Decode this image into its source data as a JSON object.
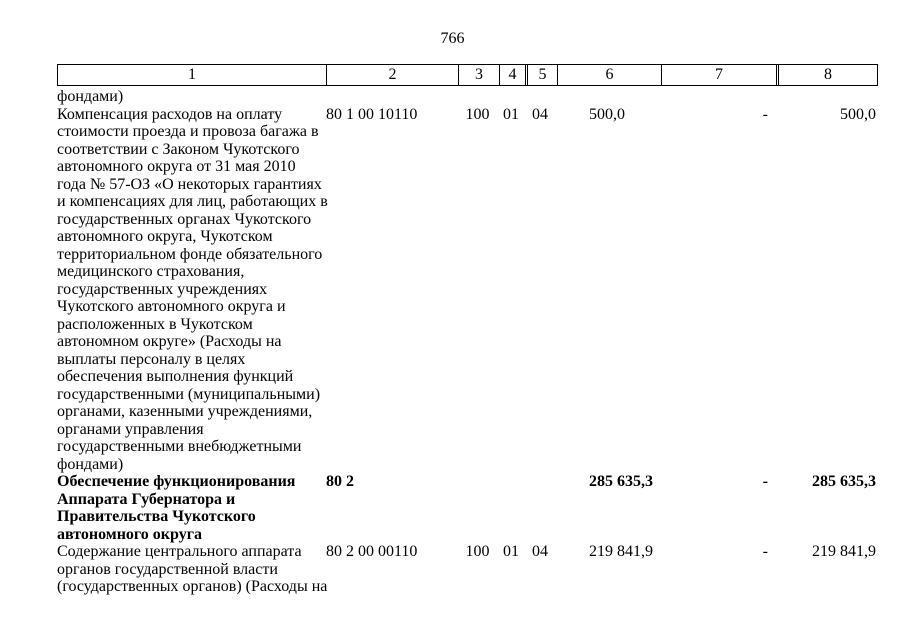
{
  "page_number": "766",
  "table": {
    "headers": [
      "1",
      "2",
      "3",
      "4",
      "5",
      "6",
      "7",
      "8"
    ],
    "rows": [
      {
        "name": "фондами)"
      },
      {
        "name": "Компенсация расходов на оплату\nстоимости проезда и провоза багажа в\nсоответствии с Законом Чукотского\nавтономного округа от 31 мая 2010\nгода № 57-ОЗ «О некоторых гарантиях\nи компенсациях для лиц, работающих в\nгосударственных органах Чукотского\nавтономного округа, Чукотском\nтерриториальном фонде обязательного\nмедицинского страхования,\nгосударственных учреждениях\nЧукотского автономного округа и\nрасположенных в Чукотском\nавтономном округе» (Расходы на\nвыплаты персоналу в целях\nобеспечения выполнения функций\nгосударственными (муниципальными)\nорганами, казенными учреждениями,\nорганами управления\nгосударственными внебюджетными\nфондами)",
        "code": "80 1 00 10110",
        "col3": "100",
        "col4": "01",
        "col5": "04",
        "amount6": "500,0",
        "amount7": "-",
        "amount8": "500,0"
      },
      {
        "name": "Обеспечение функционирования\nАппарата Губернатора и\nПравительства Чукотского\nавтономного округа",
        "code": "80 2",
        "amount6": "285 635,3",
        "amount7": "-",
        "amount8": "285 635,3"
      },
      {
        "name": "Содержание центрального аппарата\nорганов государственной власти\n(государственных органов) (Расходы на",
        "code": "80 2 00 00110",
        "col3": "100",
        "col4": "01",
        "col5": "04",
        "amount6": "219 841,9",
        "amount7": "-",
        "amount8": "219 841,9"
      }
    ]
  }
}
